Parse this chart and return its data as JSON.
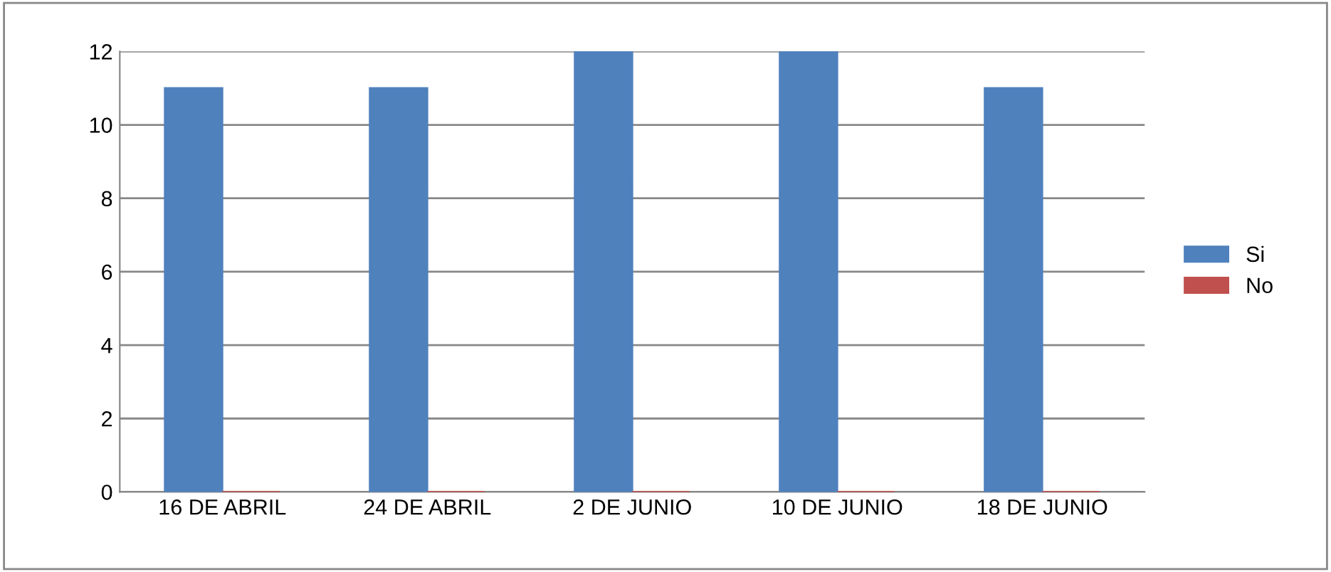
{
  "chart_data": {
    "type": "bar",
    "categories": [
      "16 DE ABRIL",
      "24 DE ABRIL",
      "2 DE JUNIO",
      "10 DE JUNIO",
      "18 DE JUNIO"
    ],
    "series": [
      {
        "name": "Si",
        "color": "#4f81bd",
        "values": [
          11,
          11,
          12,
          12,
          11
        ]
      },
      {
        "name": "No",
        "color": "#c0504d",
        "values": [
          0,
          0,
          0,
          0,
          0
        ]
      }
    ],
    "ylim": [
      0,
      12
    ],
    "yticks": [
      0,
      2,
      4,
      6,
      8,
      10,
      12
    ],
    "grid": "y",
    "legend": "right"
  }
}
